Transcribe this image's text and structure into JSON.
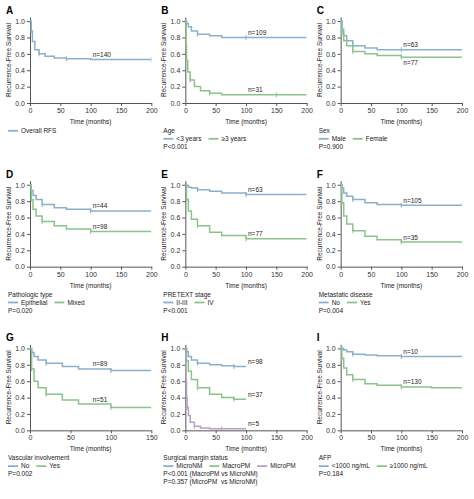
{
  "chart_data": [
    {
      "type": "step",
      "title": "A",
      "x_label": "Time (months)",
      "y_label": "Recurrence-Free Survival",
      "xlim": [
        0,
        200
      ],
      "ylim": [
        0.0,
        1.05
      ],
      "xticks": [
        0,
        50,
        100,
        150,
        200
      ],
      "yticks": [
        {
          "value": 0.0,
          "label": "0.0"
        },
        0.2,
        0.4,
        0.6,
        0.8,
        {
          "value": 1.0,
          "label": "1.0"
        }
      ],
      "legend": "bottom",
      "marker": "tick",
      "series": [
        {
          "name": "Overall RFS",
          "color": "#8ab0cc",
          "x": [
            0,
            2,
            4,
            8,
            15,
            25,
            40,
            60,
            100,
            150,
            200
          ],
          "values": [
            1.0,
            0.88,
            0.75,
            0.65,
            0.6,
            0.57,
            0.55,
            0.54,
            0.53,
            0.53,
            0.53
          ],
          "annotation": "n=140"
        }
      ]
    },
    {
      "type": "step",
      "title": "B",
      "x_label": "Time (months)",
      "y_label": "Recurrence-Free Survival",
      "xlim": [
        0,
        200
      ],
      "ylim": [
        0.0,
        1.05
      ],
      "xticks": [
        0,
        50,
        100,
        150,
        200
      ],
      "yticks": [
        {
          "value": 0.0,
          "label": "0.0"
        },
        0.2,
        0.4,
        0.6,
        0.8,
        {
          "value": 1.0,
          "label": "1.0"
        }
      ],
      "legend": "bottom",
      "legend_title": "Age",
      "marker": "tick",
      "annotations": [
        "P<0.001"
      ],
      "series": [
        {
          "name": "<3 years",
          "color": "#8ab0cc",
          "x": [
            0,
            2,
            5,
            10,
            20,
            40,
            60,
            100,
            150,
            200
          ],
          "values": [
            1.0,
            0.97,
            0.93,
            0.88,
            0.84,
            0.82,
            0.8,
            0.8,
            0.8,
            0.8
          ],
          "annotation": "n=109"
        },
        {
          "name": "≥3 years",
          "color": "#8ac48a",
          "x": [
            0,
            1,
            2,
            4,
            8,
            15,
            25,
            40,
            60,
            100,
            150,
            200
          ],
          "values": [
            1.0,
            0.7,
            0.52,
            0.38,
            0.28,
            0.2,
            0.15,
            0.12,
            0.1,
            0.1,
            0.1,
            0.1
          ],
          "annotation": "n=31"
        }
      ]
    },
    {
      "type": "step",
      "title": "C",
      "x_label": "Time (months)",
      "y_label": "Recurrence-Free Survival",
      "xlim": [
        0,
        200
      ],
      "ylim": [
        0.0,
        1.05
      ],
      "xticks": [
        0,
        50,
        100,
        150,
        200
      ],
      "yticks": [
        {
          "value": 0.0,
          "label": "0.0"
        },
        0.2,
        0.4,
        0.6,
        0.8,
        {
          "value": 1.0,
          "label": "1.0"
        }
      ],
      "legend": "bottom",
      "legend_title": "Sex",
      "marker": "tick",
      "annotations": [
        "P=0.900"
      ],
      "series": [
        {
          "name": "Male",
          "color": "#8ab0cc",
          "x": [
            0,
            2,
            5,
            10,
            20,
            40,
            60,
            100,
            150,
            200
          ],
          "values": [
            1.0,
            0.9,
            0.82,
            0.76,
            0.7,
            0.67,
            0.65,
            0.65,
            0.65,
            0.65
          ],
          "annotation": "n=63"
        },
        {
          "name": "Female",
          "color": "#8ac48a",
          "x": [
            0,
            2,
            5,
            10,
            20,
            40,
            60,
            100,
            150,
            200
          ],
          "values": [
            1.0,
            0.85,
            0.76,
            0.7,
            0.63,
            0.6,
            0.58,
            0.56,
            0.56,
            0.56
          ],
          "annotation": "n=77"
        }
      ]
    },
    {
      "type": "step",
      "title": "D",
      "x_label": "Time (months)",
      "y_label": "Recurrence-Free Survival",
      "xlim": [
        0,
        200
      ],
      "ylim": [
        0.0,
        1.05
      ],
      "xticks": [
        0,
        50,
        100,
        150,
        200
      ],
      "yticks": [
        {
          "value": 0.0,
          "label": "0.0"
        },
        0.2,
        0.4,
        0.6,
        0.8,
        {
          "value": 1.0,
          "label": "1.0"
        }
      ],
      "legend": "bottom",
      "legend_title": "Pathologic type",
      "marker": "tick",
      "annotations": [
        "P=0.020"
      ],
      "series": [
        {
          "name": "Epithelial",
          "color": "#8ab0cc",
          "x": [
            0,
            2,
            5,
            10,
            20,
            40,
            60,
            100,
            150,
            200
          ],
          "values": [
            1.0,
            0.93,
            0.87,
            0.82,
            0.76,
            0.72,
            0.7,
            0.68,
            0.68,
            0.68
          ],
          "annotation": "n=44"
        },
        {
          "name": "Mixed",
          "color": "#8ac48a",
          "x": [
            0,
            2,
            5,
            10,
            20,
            40,
            60,
            100,
            150,
            200
          ],
          "values": [
            1.0,
            0.82,
            0.7,
            0.62,
            0.55,
            0.5,
            0.46,
            0.43,
            0.43,
            0.43
          ],
          "annotation": "n=98"
        }
      ]
    },
    {
      "type": "step",
      "title": "E",
      "x_label": "Time (months)",
      "y_label": "Recurrence-Free Survival",
      "xlim": [
        0,
        200
      ],
      "ylim": [
        0.0,
        1.05
      ],
      "xticks": [
        0,
        50,
        100,
        150,
        200
      ],
      "yticks": [
        {
          "value": 0.0,
          "label": "0.0"
        },
        0.2,
        0.4,
        0.6,
        0.8,
        {
          "value": 1.0,
          "label": "1.0"
        }
      ],
      "legend": "bottom",
      "legend_title": "PRETEXT stage",
      "marker": "tick",
      "annotations": [
        "P<0.001"
      ],
      "series": [
        {
          "name": "II-III",
          "color": "#8ab0cc",
          "x": [
            0,
            2,
            5,
            10,
            20,
            40,
            60,
            100,
            150,
            200
          ],
          "values": [
            1.0,
            0.99,
            0.97,
            0.96,
            0.94,
            0.92,
            0.9,
            0.88,
            0.88,
            0.88
          ],
          "annotation": "n=63"
        },
        {
          "name": "IV",
          "color": "#8ac48a",
          "x": [
            0,
            2,
            5,
            10,
            20,
            40,
            60,
            100,
            150,
            200
          ],
          "values": [
            1.0,
            0.82,
            0.68,
            0.58,
            0.5,
            0.42,
            0.38,
            0.34,
            0.34,
            0.34
          ],
          "annotation": "n=77"
        }
      ]
    },
    {
      "type": "step",
      "title": "F",
      "x_label": "Time (months)",
      "y_label": "Recurrence-Free Survival",
      "xlim": [
        0,
        200
      ],
      "ylim": [
        0.0,
        1.05
      ],
      "xticks": [
        0,
        50,
        100,
        150,
        200
      ],
      "yticks": [
        {
          "value": 0.0,
          "label": "0.0"
        },
        0.2,
        0.4,
        0.6,
        0.8,
        {
          "value": 1.0,
          "label": "1.0"
        }
      ],
      "legend": "bottom",
      "legend_title": "Metastatic disease",
      "marker": "tick",
      "annotations": [
        "P=0.004"
      ],
      "series": [
        {
          "name": "No",
          "color": "#8ab0cc",
          "x": [
            0,
            2,
            5,
            10,
            20,
            40,
            60,
            100,
            150,
            200
          ],
          "values": [
            1.0,
            0.96,
            0.9,
            0.86,
            0.82,
            0.78,
            0.76,
            0.75,
            0.75,
            0.75
          ],
          "annotation": "n=105"
        },
        {
          "name": "Yes",
          "color": "#8ac48a",
          "x": [
            0,
            2,
            5,
            10,
            20,
            40,
            60,
            100,
            150,
            200
          ],
          "values": [
            1.0,
            0.78,
            0.62,
            0.52,
            0.44,
            0.37,
            0.33,
            0.3,
            0.3,
            0.3
          ],
          "annotation": "n=35"
        }
      ]
    },
    {
      "type": "step",
      "title": "G",
      "x_label": "Time (months)",
      "y_label": "Recurrence-Free Survival",
      "xlim": [
        0,
        150
      ],
      "ylim": [
        0.0,
        1.05
      ],
      "xticks": [
        0,
        50,
        100,
        150
      ],
      "yticks": [
        {
          "value": 0.0,
          "label": "0.0"
        },
        0.2,
        0.4,
        0.6,
        0.8,
        {
          "value": 1.0,
          "label": "1.0"
        }
      ],
      "legend": "bottom",
      "legend_title": "Vascular involvement",
      "marker": "tick",
      "annotations": [
        "P=0.002"
      ],
      "series": [
        {
          "name": "No",
          "color": "#8ab0cc",
          "x": [
            0,
            2,
            5,
            10,
            20,
            40,
            60,
            100,
            150
          ],
          "values": [
            1.0,
            0.95,
            0.9,
            0.86,
            0.82,
            0.78,
            0.75,
            0.73,
            0.73
          ],
          "annotation": "n=89"
        },
        {
          "name": "Yes",
          "color": "#8ac48a",
          "x": [
            0,
            2,
            5,
            10,
            20,
            40,
            60,
            100,
            150
          ],
          "values": [
            1.0,
            0.75,
            0.6,
            0.52,
            0.44,
            0.37,
            0.32,
            0.28,
            0.28
          ],
          "annotation": "n=51"
        }
      ]
    },
    {
      "type": "step",
      "title": "H",
      "x_label": "Time (months)",
      "y_label": "Recurrence-Free Survival",
      "xlim": [
        0,
        200
      ],
      "ylim": [
        0.0,
        1.05
      ],
      "xticks": [
        0,
        50,
        100,
        150,
        200
      ],
      "yticks": [
        {
          "value": 0.0,
          "label": "0.0"
        },
        0.2,
        0.4,
        0.6,
        0.8,
        {
          "value": 1.0,
          "label": "1.0"
        }
      ],
      "legend": "bottom",
      "legend_title": "Surgical margin status",
      "marker": "tick",
      "annotations": [
        "P<0.001 (MacroPM vs MicroNM)\nP=0.357 (MicroPM  vs MicroNM)"
      ],
      "series": [
        {
          "name": "MicroNM",
          "color": "#8ab0cc",
          "x": [
            0,
            2,
            5,
            10,
            20,
            40,
            60,
            80,
            100
          ],
          "values": [
            1.0,
            0.96,
            0.9,
            0.86,
            0.82,
            0.8,
            0.79,
            0.78,
            0.78
          ],
          "annotation": "n=98"
        },
        {
          "name": "MacroPM",
          "color": "#8ac48a",
          "x": [
            0,
            2,
            5,
            10,
            20,
            40,
            60,
            80,
            100
          ],
          "values": [
            1.0,
            0.85,
            0.72,
            0.62,
            0.52,
            0.44,
            0.4,
            0.38,
            0.38
          ],
          "annotation": "n=37"
        },
        {
          "name": "MicroPM",
          "color": "#b8a0cc",
          "x": [
            0,
            0.5,
            1,
            2,
            3,
            5,
            8,
            15,
            25,
            40,
            60,
            80,
            100
          ],
          "values": [
            1.0,
            0.8,
            0.6,
            0.4,
            0.28,
            0.18,
            0.1,
            0.05,
            0.03,
            0.02,
            0.02,
            0.02,
            0.02
          ],
          "annotation": "n=5"
        }
      ]
    },
    {
      "type": "step",
      "title": "I",
      "x_label": "Time (months)",
      "y_label": "Recurrence-Free Survival",
      "xlim": [
        0,
        200
      ],
      "ylim": [
        0.0,
        1.05
      ],
      "xticks": [
        0,
        50,
        100,
        150,
        200
      ],
      "yticks": [
        {
          "value": 0.0,
          "label": "0.0"
        },
        0.2,
        0.4,
        0.6,
        0.8,
        {
          "value": 1.0,
          "label": "1.0"
        }
      ],
      "legend": "bottom",
      "legend_title": "AFP",
      "marker": "tick",
      "annotations": [
        "P=0.184"
      ],
      "series": [
        {
          "name": "<1000 ng/mL",
          "color": "#8ab0cc",
          "x": [
            0,
            2,
            5,
            10,
            20,
            40,
            60,
            100,
            150,
            200
          ],
          "values": [
            1.0,
            1.0,
            0.98,
            0.96,
            0.93,
            0.92,
            0.91,
            0.9,
            0.9,
            0.9
          ],
          "annotation": "n=10"
        },
        {
          "name": "≥1000 ng/mL",
          "color": "#8ac48a",
          "x": [
            0,
            2,
            5,
            10,
            20,
            40,
            60,
            100,
            150,
            200
          ],
          "values": [
            1.0,
            0.88,
            0.76,
            0.68,
            0.62,
            0.57,
            0.55,
            0.53,
            0.52,
            0.52
          ],
          "annotation": "n=130"
        }
      ]
    }
  ]
}
